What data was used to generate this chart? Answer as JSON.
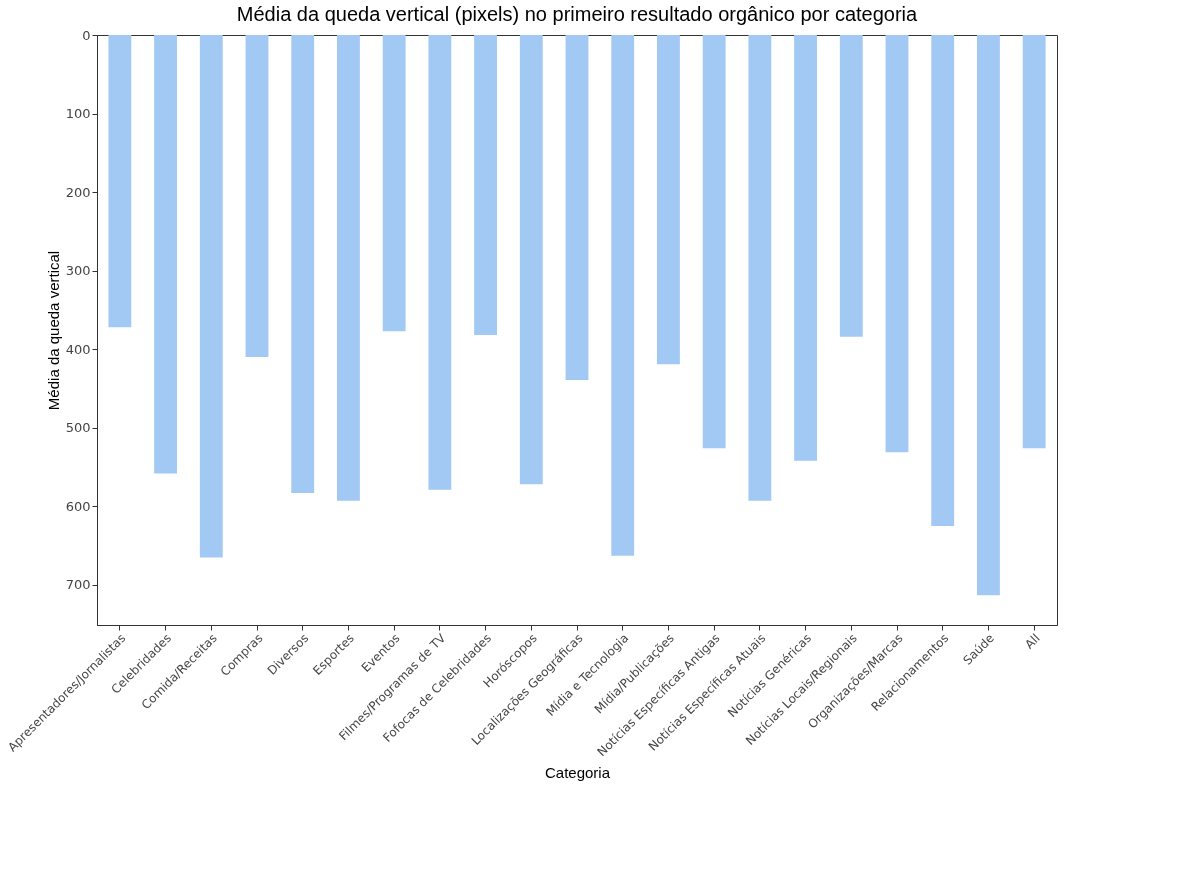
{
  "chart_data": {
    "type": "bar",
    "title": "Média da queda vertical (pixels) no primeiro resultado orgânico por categoria",
    "xlabel": "Categoria",
    "ylabel": "Média da queda vertical",
    "categories": [
      "Apresentadores/Jornalistas",
      "Celebridades",
      "Comida/Receitas",
      "Compras",
      "Diversos",
      "Esportes",
      "Eventos",
      "Filmes/Programas de TV",
      "Fofocas de Celebridades",
      "Horóscopos",
      "Localizações Geográficas",
      "Mídia e Tecnologia",
      "Mídia/Publicações",
      "Notícias Específicas Antigas",
      "Notícias Específicas Atuais",
      "Notícias Genéricas",
      "Notícias Locais/Regionais",
      "Organizações/Marcas",
      "Relacionamentos",
      "Saúde",
      "All"
    ],
    "values": [
      372,
      558,
      665,
      410,
      583,
      593,
      377,
      579,
      382,
      572,
      439,
      663,
      419,
      526,
      593,
      542,
      384,
      531,
      625,
      713,
      526
    ],
    "color": "#a1c9f4",
    "ylim": [
      751,
      0
    ],
    "yticks": [
      0,
      100,
      200,
      300,
      400,
      500,
      600,
      700
    ],
    "grid": false
  }
}
